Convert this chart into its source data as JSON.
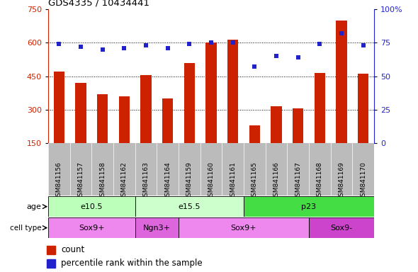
{
  "title": "GDS4335 / 10434441",
  "samples": [
    "GSM841156",
    "GSM841157",
    "GSM841158",
    "GSM841162",
    "GSM841163",
    "GSM841164",
    "GSM841159",
    "GSM841160",
    "GSM841161",
    "GSM841165",
    "GSM841166",
    "GSM841167",
    "GSM841168",
    "GSM841169",
    "GSM841170"
  ],
  "counts": [
    470,
    420,
    370,
    360,
    455,
    350,
    510,
    600,
    615,
    230,
    315,
    305,
    465,
    700,
    460
  ],
  "percentiles": [
    74,
    72,
    70,
    71,
    73,
    71,
    74,
    75,
    75,
    57,
    65,
    64,
    74,
    82,
    73
  ],
  "ylim_left": [
    150,
    750
  ],
  "ylim_right": [
    0,
    100
  ],
  "yticks_left": [
    150,
    300,
    450,
    600,
    750
  ],
  "yticks_right": [
    0,
    25,
    50,
    75,
    100
  ],
  "bar_color": "#cc2200",
  "dot_color": "#2222cc",
  "bg_color": "#ffffff",
  "tick_area_color": "#bbbbbb",
  "age_groups": [
    {
      "label": "e10.5",
      "start": 0,
      "end": 4,
      "color": "#bbffbb"
    },
    {
      "label": "e15.5",
      "start": 4,
      "end": 9,
      "color": "#ccffcc"
    },
    {
      "label": "p23",
      "start": 9,
      "end": 15,
      "color": "#44dd44"
    }
  ],
  "cell_groups": [
    {
      "label": "Sox9+",
      "start": 0,
      "end": 4,
      "color": "#ee88ee"
    },
    {
      "label": "Ngn3+",
      "start": 4,
      "end": 6,
      "color": "#dd66dd"
    },
    {
      "label": "Sox9+",
      "start": 6,
      "end": 12,
      "color": "#ee88ee"
    },
    {
      "label": "Sox9-",
      "start": 12,
      "end": 15,
      "color": "#cc44cc"
    }
  ],
  "legend_items": [
    {
      "label": "count",
      "color": "#cc2200"
    },
    {
      "label": "percentile rank within the sample",
      "color": "#2222cc"
    }
  ]
}
